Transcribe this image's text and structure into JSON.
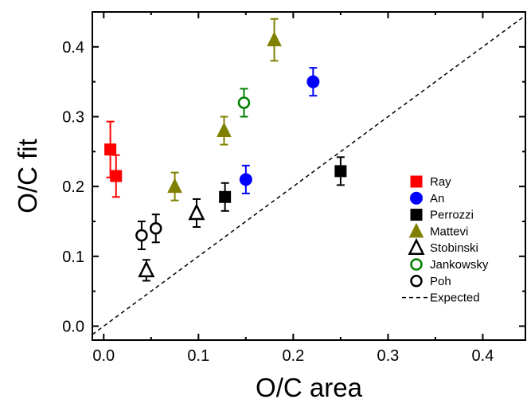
{
  "chart_data": {
    "type": "scatter",
    "title": "",
    "xlabel": "O/C area",
    "ylabel": "O/C fit",
    "xlim": [
      -0.012,
      0.445
    ],
    "ylim": [
      -0.02,
      0.45
    ],
    "x_ticks": [
      "0.0",
      "0.1",
      "0.2",
      "0.3",
      "0.4"
    ],
    "y_ticks": [
      "0.0",
      "0.1",
      "0.2",
      "0.3",
      "0.4"
    ],
    "x_tick_values": [
      0.0,
      0.1,
      0.2,
      0.3,
      0.4
    ],
    "y_tick_values": [
      0.0,
      0.1,
      0.2,
      0.3,
      0.4
    ],
    "legend_position": "bottom-right",
    "series": [
      {
        "name": "Ray",
        "marker": "square",
        "filled": true,
        "color": "#ff0000",
        "points": [
          {
            "x": 0.007,
            "y": 0.253,
            "err": 0.04
          },
          {
            "x": 0.013,
            "y": 0.215,
            "err": 0.03
          }
        ]
      },
      {
        "name": "An",
        "marker": "circle",
        "filled": true,
        "color": "#0000ff",
        "points": [
          {
            "x": 0.15,
            "y": 0.21,
            "err": 0.02
          },
          {
            "x": 0.221,
            "y": 0.35,
            "err": 0.02
          }
        ]
      },
      {
        "name": "Perrozzi",
        "marker": "square",
        "filled": true,
        "color": "#000000",
        "points": [
          {
            "x": 0.128,
            "y": 0.185,
            "err": 0.02
          },
          {
            "x": 0.25,
            "y": 0.222,
            "err": 0.02
          }
        ]
      },
      {
        "name": "Mattevi",
        "marker": "triangle",
        "filled": true,
        "color": "#808000",
        "points": [
          {
            "x": 0.075,
            "y": 0.2,
            "err": 0.02
          },
          {
            "x": 0.127,
            "y": 0.28,
            "err": 0.02
          },
          {
            "x": 0.18,
            "y": 0.41,
            "err": 0.03
          }
        ]
      },
      {
        "name": "Stobinski",
        "marker": "triangle",
        "filled": false,
        "color": "#000000",
        "points": [
          {
            "x": 0.045,
            "y": 0.08,
            "err": 0.015
          },
          {
            "x": 0.098,
            "y": 0.162,
            "err": 0.02
          }
        ]
      },
      {
        "name": "Jankowsky",
        "marker": "circle",
        "filled": false,
        "color": "#008000",
        "points": [
          {
            "x": 0.148,
            "y": 0.32,
            "err": 0.02
          }
        ]
      },
      {
        "name": "Poh",
        "marker": "circle",
        "filled": false,
        "color": "#000000",
        "points": [
          {
            "x": 0.04,
            "y": 0.13,
            "err": 0.02
          },
          {
            "x": 0.055,
            "y": 0.14,
            "err": 0.02
          }
        ]
      }
    ],
    "reference_line": {
      "name": "Expected",
      "style": "dashed",
      "color": "#000000",
      "x": [
        -0.012,
        0.445
      ],
      "y": [
        -0.012,
        0.445
      ]
    }
  }
}
